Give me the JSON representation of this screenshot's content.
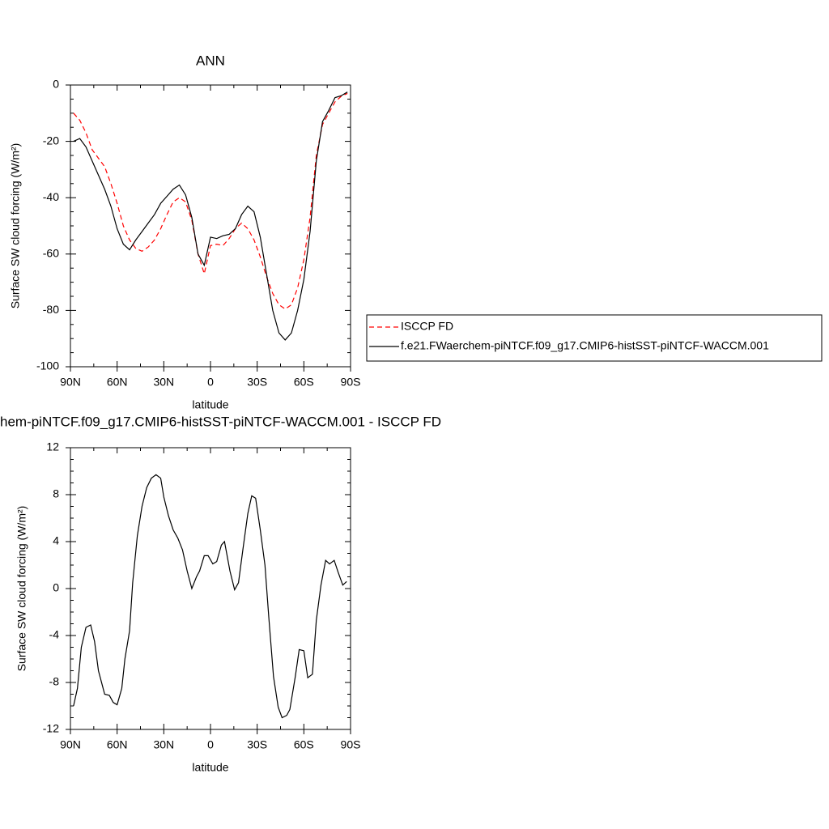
{
  "chart_data": [
    {
      "type": "line",
      "title": "ANN",
      "xlabel": "latitude",
      "ylabel": "Surface SW cloud forcing (W/m²)",
      "x": [
        88,
        84,
        80,
        76,
        72,
        68,
        64,
        60,
        56,
        52,
        48,
        44,
        40,
        36,
        32,
        28,
        24,
        20,
        16,
        12,
        8,
        4,
        0,
        -4,
        -8,
        -12,
        -16,
        -20,
        -24,
        -28,
        -32,
        -36,
        -40,
        -44,
        -48,
        -52,
        -56,
        -60,
        -64,
        -68,
        -72,
        -76,
        -80,
        -84,
        -88
      ],
      "xlim": [
        90,
        -90
      ],
      "xticks": [
        {
          "value": 90,
          "label": "90N"
        },
        {
          "value": 60,
          "label": "60N"
        },
        {
          "value": 30,
          "label": "30N"
        },
        0,
        {
          "value": -30,
          "label": "30S"
        },
        {
          "value": -60,
          "label": "60S"
        },
        {
          "value": -90,
          "label": "90S"
        }
      ],
      "ylim": [
        -100,
        0
      ],
      "yticks": [
        -100,
        -80,
        -60,
        -40,
        -20,
        0
      ],
      "legend": "right",
      "series": [
        {
          "name": "ISCCP FD",
          "color": "#ff0000",
          "linestyle": "dashed",
          "values": [
            -10,
            -12.5,
            -17,
            -23,
            -26,
            -29,
            -35,
            -42,
            -50,
            -55,
            -58,
            -59,
            -57.5,
            -55,
            -51,
            -46,
            -41.5,
            -40,
            -41.5,
            -48,
            -60,
            -67,
            -57,
            -56.5,
            -57,
            -54.5,
            -51,
            -49,
            -51,
            -55,
            -61,
            -68,
            -74,
            -78,
            -79.5,
            -78,
            -72,
            -62,
            -47,
            -25,
            -14,
            -10,
            -6,
            -4,
            -3
          ]
        },
        {
          "name": "f.e21.FWaerchem-piNTCF.f09_g17.CMIP6-histSST-piNTCF-WACCM.001",
          "color": "#000000",
          "linestyle": "solid",
          "values": [
            -20,
            -19,
            -22,
            -27,
            -32,
            -37,
            -43,
            -51,
            -56.5,
            -58.5,
            -55,
            -52,
            -49,
            -46,
            -42,
            -39.5,
            -37,
            -35.5,
            -39,
            -47,
            -60,
            -64,
            -54,
            -54.5,
            -53.5,
            -53,
            -51,
            -46,
            -43,
            -45,
            -54,
            -67,
            -80,
            -88,
            -90.5,
            -88,
            -80,
            -69,
            -52,
            -27,
            -13,
            -9,
            -4.5,
            -3.8,
            -2.5
          ]
        }
      ]
    },
    {
      "type": "line",
      "title": "hem-piNTCF.f09_g17.CMIP6-histSST-piNTCF-WACCM.001 - ISCCP FD",
      "xlabel": "latitude",
      "ylabel": "Surface SW cloud forcing (W/m²)",
      "x": [
        88,
        85.5,
        83,
        80,
        77,
        74.5,
        72,
        68,
        65,
        62.5,
        60,
        57,
        55,
        52,
        50,
        47,
        44,
        41,
        38,
        35,
        32,
        30,
        27,
        24,
        21,
        18,
        15,
        12,
        9,
        7,
        4,
        1.5,
        -1.5,
        -4,
        -7,
        -9,
        -12.5,
        -15.5,
        -18,
        -21,
        -24,
        -26.5,
        -29,
        -32,
        -35,
        -37.5,
        -40.5,
        -43.5,
        -46,
        -49,
        -51,
        -54.5,
        -57,
        -60,
        -62.5,
        -65.5,
        -68,
        -71,
        -74,
        -76.5,
        -79.5,
        -82,
        -85,
        -87.5
      ],
      "xlim": [
        90,
        -90
      ],
      "xticks": [
        {
          "value": 90,
          "label": "90N"
        },
        {
          "value": 60,
          "label": "60N"
        },
        {
          "value": 30,
          "label": "30N"
        },
        0,
        {
          "value": -30,
          "label": "30S"
        },
        {
          "value": -60,
          "label": "60S"
        },
        {
          "value": -90,
          "label": "90S"
        }
      ],
      "ylim": [
        -12,
        12
      ],
      "yticks": [
        -12,
        -8,
        -4,
        0,
        4,
        8,
        12
      ],
      "series": [
        {
          "color": "#000000",
          "linestyle": "solid",
          "values": [
            -10,
            -8.5,
            -5,
            -3.3,
            -3.1,
            -4.5,
            -7,
            -9,
            -9.1,
            -9.7,
            -9.9,
            -8.5,
            -6,
            -3.6,
            0.5,
            4.5,
            7,
            8.6,
            9.4,
            9.7,
            9.4,
            7.8,
            6.2,
            5,
            4.3,
            3.3,
            1.5,
            0,
            1,
            1.5,
            2.8,
            2.8,
            2.1,
            2.3,
            3.7,
            4,
            1.5,
            -0.1,
            0.5,
            3.5,
            6.4,
            7.9,
            7.7,
            5,
            2,
            -2.5,
            -7.5,
            -10.1,
            -11,
            -10.8,
            -10.3,
            -7.5,
            -5.2,
            -5.3,
            -7.6,
            -7.3,
            -2.7,
            0.3,
            2.4,
            2.1,
            2.4,
            1.4,
            0.3,
            0.6
          ]
        }
      ]
    }
  ]
}
